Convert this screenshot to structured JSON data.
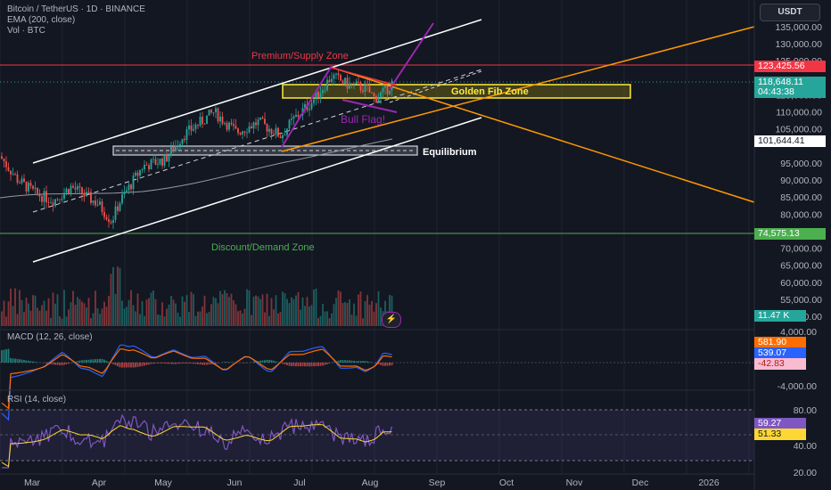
{
  "header": {
    "title_line": "Bitcoin / TetherUS · 1D · BINANCE",
    "ema_line": "EMA (200, close)",
    "vol_line": "Vol · BTC",
    "currency": "USDT"
  },
  "price_axis": {
    "ticks": [
      "135,000.00",
      "130,000.00",
      "125,000.00",
      "115,000.00",
      "110,000.00",
      "105,000.00",
      "95,000.00",
      "90,000.00",
      "85,000.00",
      "80,000.00",
      "70,000.00",
      "65,000.00",
      "60,000.00",
      "55,000.00",
      "50,000.00"
    ],
    "badges": {
      "premium_price": "123,425.56",
      "last_price": "118,648.11",
      "countdown": "04:43:38",
      "equilibrium_price": "101,644.41",
      "discount_price": "74,575.13",
      "volume": "11.47 K"
    }
  },
  "annotations": {
    "premium_zone": "Premium/Supply Zone",
    "golden_fib": "Golden Fib Zone",
    "bull_flag": "Bull Flag!",
    "equilibrium": "Equilibrium",
    "discount_zone": "Discount/Demand Zone"
  },
  "macd": {
    "title": "MACD (12, 26, close)",
    "ticks": [
      "4,000.00",
      "-4,000.00"
    ],
    "values": [
      "581.90",
      "539.07",
      "-42.83"
    ]
  },
  "rsi": {
    "title": "RSI (14, close)",
    "ticks": [
      "80.00",
      "40.00",
      "20.00"
    ],
    "values": [
      "59.27",
      "51.33"
    ]
  },
  "time_axis": [
    "Mar",
    "Apr",
    "May",
    "Jun",
    "Jul",
    "Aug",
    "Sep",
    "Oct",
    "Nov",
    "Dec",
    "2026"
  ],
  "colors": {
    "up": "#26a69a",
    "down": "#ef5350",
    "premium": "#f23645",
    "discount": "#4caf50",
    "fib": "#ffeb3b",
    "orange": "#ff9800",
    "purple": "#9c27b0",
    "macd": "#2962ff",
    "signal": "#ff6d00",
    "rsi": "#7e57c2",
    "rsi_ma": "#fdd835"
  },
  "chart_data": {
    "type": "line",
    "title": "Bitcoin / TetherUS · 1D · BINANCE",
    "x": [
      "Mar",
      "Apr",
      "May",
      "Jun",
      "Jul",
      "Aug"
    ],
    "series": [
      {
        "values": [
          88000,
          82000,
          96000,
          105000,
          108000,
          118648
        ]
      }
    ],
    "ylim": [
      50000,
      135000
    ],
    "levels": {
      "premium": 123425.56,
      "equilibrium": 101644.41,
      "discount": 74575.13
    }
  }
}
